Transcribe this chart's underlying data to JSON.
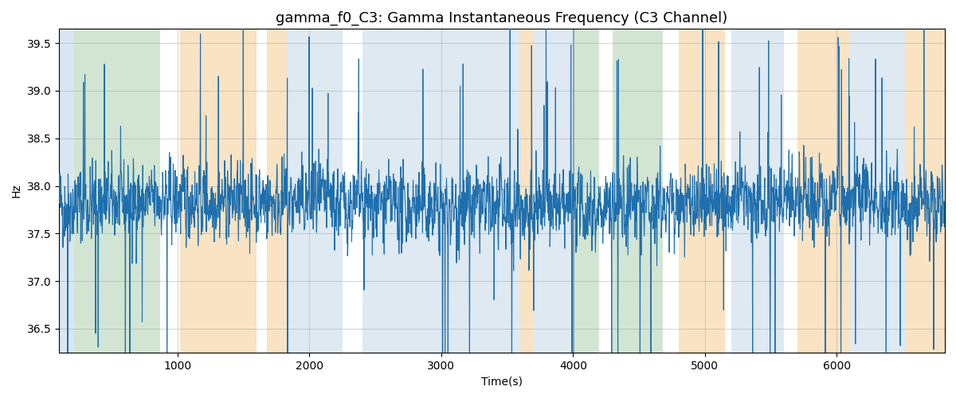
{
  "title": "gamma_f0_C3: Gamma Instantaneous Frequency (C3 Channel)",
  "xlabel": "Time(s)",
  "ylabel": "Hz",
  "ylim": [
    36.25,
    39.65
  ],
  "xlim": [
    100,
    6820
  ],
  "line_color": "#1f6fad",
  "line_width": 0.8,
  "bg_bands": [
    {
      "xstart": 100,
      "xend": 215,
      "color": "#adc9e0",
      "alpha": 0.45
    },
    {
      "xstart": 215,
      "xend": 870,
      "color": "#90be90",
      "alpha": 0.4
    },
    {
      "xstart": 1020,
      "xend": 1600,
      "color": "#f5c888",
      "alpha": 0.5
    },
    {
      "xstart": 1680,
      "xend": 1830,
      "color": "#f5c888",
      "alpha": 0.5
    },
    {
      "xstart": 1830,
      "xend": 2250,
      "color": "#adc9e0",
      "alpha": 0.4
    },
    {
      "xstart": 2400,
      "xend": 3600,
      "color": "#adc9e0",
      "alpha": 0.4
    },
    {
      "xstart": 3600,
      "xend": 3700,
      "color": "#f5c888",
      "alpha": 0.5
    },
    {
      "xstart": 3700,
      "xend": 3995,
      "color": "#adc9e0",
      "alpha": 0.4
    },
    {
      "xstart": 3995,
      "xend": 4010,
      "color": "#667799",
      "alpha": 0.7
    },
    {
      "xstart": 4010,
      "xend": 4200,
      "color": "#90be90",
      "alpha": 0.4
    },
    {
      "xstart": 4300,
      "xend": 4680,
      "color": "#90be90",
      "alpha": 0.4
    },
    {
      "xstart": 4800,
      "xend": 5150,
      "color": "#f5c888",
      "alpha": 0.5
    },
    {
      "xstart": 5200,
      "xend": 5600,
      "color": "#adc9e0",
      "alpha": 0.4
    },
    {
      "xstart": 5700,
      "xend": 6100,
      "color": "#f5c888",
      "alpha": 0.5
    },
    {
      "xstart": 6100,
      "xend": 6520,
      "color": "#adc9e0",
      "alpha": 0.4
    },
    {
      "xstart": 6520,
      "xend": 6820,
      "color": "#f5c888",
      "alpha": 0.5
    }
  ],
  "grid_color": "#999999",
  "grid_alpha": 0.5,
  "title_fontsize": 13,
  "fig_width": 12.0,
  "fig_height": 5.0,
  "dpi": 100,
  "seed": 42,
  "n_points": 3000,
  "mean_hz": 37.8,
  "std_hz": 0.28,
  "spike_prob": 0.025,
  "spike_mag": 0.85,
  "xticks": [
    1000,
    2000,
    3000,
    4000,
    5000,
    6000
  ],
  "yticks": [
    36.5,
    37.0,
    37.5,
    38.0,
    38.5,
    39.0,
    39.5
  ]
}
